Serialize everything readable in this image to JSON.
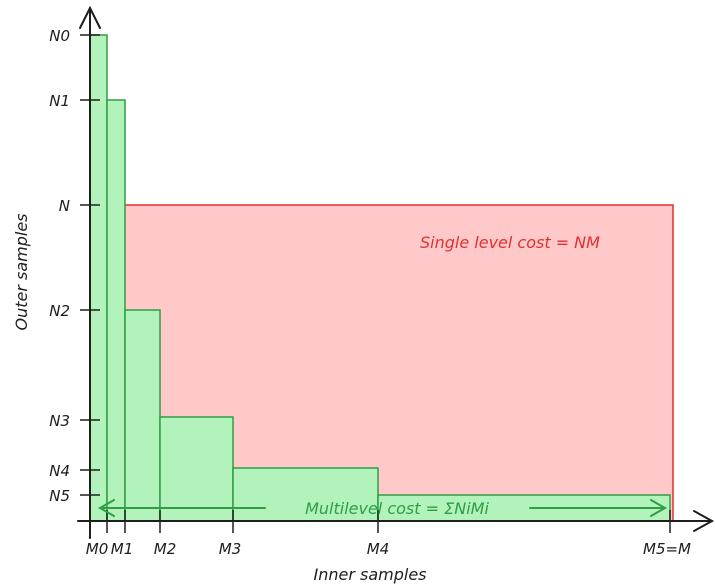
{
  "diagram": {
    "y_axis_title": "Outer samples",
    "x_axis_title": "Inner samples",
    "y_labels": [
      "N0",
      "N1",
      "N",
      "N2",
      "N3",
      "N4",
      "N5"
    ],
    "x_labels": [
      "M0",
      "M1",
      "M2",
      "M3",
      "M4",
      "M5=M"
    ],
    "single_level_label": "Single level cost = NM",
    "multilevel_label": "Multilevel cost = ΣNiMi",
    "colors": {
      "single_fill": "#ffc9c9",
      "single_stroke": "#e03131",
      "multi_fill": "#b2f2bb",
      "multi_stroke": "#2f9e44",
      "ink": "#1e1e1e"
    }
  }
}
